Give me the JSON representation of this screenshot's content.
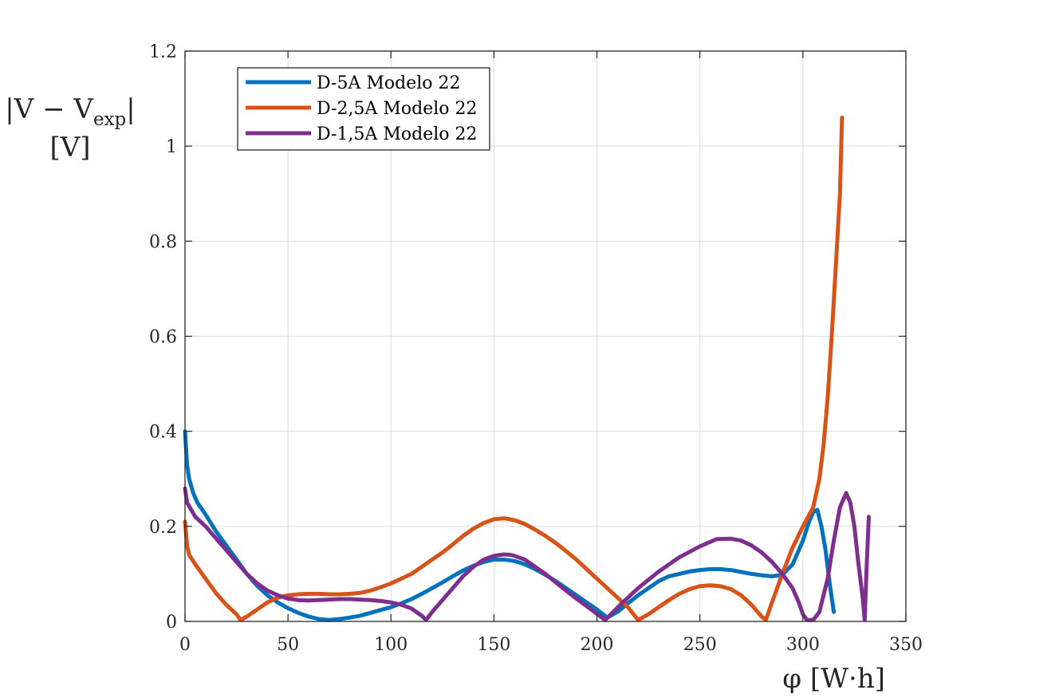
{
  "chart_data": {
    "type": "line",
    "xlabel": "φ [W·h]",
    "ylabel_line1": "|V − V",
    "ylabel_sub": "exp",
    "ylabel_close": "|",
    "ylabel_line2": "[V]",
    "xlim": [
      0,
      350
    ],
    "ylim": [
      0,
      1.2
    ],
    "xticks": [
      "0",
      "50",
      "100",
      "150",
      "200",
      "250",
      "300",
      "350"
    ],
    "yticks": [
      "0",
      "0.2",
      "0.4",
      "0.6",
      "0.8",
      "1",
      "1.2"
    ],
    "grid": true,
    "legend_position": "top-left",
    "series": [
      {
        "name": "D-5A Modelo 22",
        "color": "#0072BD",
        "x": [
          0,
          1,
          2,
          4,
          6,
          10,
          15,
          20,
          25,
          30,
          35,
          40,
          45,
          50,
          55,
          60,
          65,
          70,
          75,
          80,
          85,
          90,
          95,
          100,
          105,
          110,
          115,
          120,
          125,
          130,
          135,
          140,
          145,
          150,
          155,
          160,
          165,
          170,
          175,
          180,
          185,
          190,
          195,
          200,
          205,
          210,
          215,
          220,
          225,
          230,
          235,
          240,
          245,
          250,
          255,
          260,
          265,
          270,
          275,
          280,
          285,
          290,
          295,
          300,
          303,
          305,
          307,
          309,
          311,
          313,
          315
        ],
        "y": [
          0.4,
          0.33,
          0.3,
          0.27,
          0.25,
          0.225,
          0.19,
          0.16,
          0.13,
          0.1,
          0.075,
          0.055,
          0.04,
          0.028,
          0.018,
          0.01,
          0.005,
          0.003,
          0.005,
          0.008,
          0.012,
          0.018,
          0.024,
          0.03,
          0.038,
          0.047,
          0.058,
          0.07,
          0.082,
          0.095,
          0.107,
          0.117,
          0.125,
          0.13,
          0.13,
          0.127,
          0.12,
          0.11,
          0.098,
          0.085,
          0.07,
          0.055,
          0.04,
          0.025,
          0.008,
          0.02,
          0.038,
          0.055,
          0.07,
          0.085,
          0.095,
          0.1,
          0.105,
          0.108,
          0.11,
          0.11,
          0.108,
          0.104,
          0.1,
          0.097,
          0.095,
          0.098,
          0.12,
          0.17,
          0.21,
          0.23,
          0.235,
          0.2,
          0.15,
          0.08,
          0.02
        ]
      },
      {
        "name": "D-2,5A Modelo 22",
        "color": "#D95319",
        "x": [
          0,
          1,
          2,
          5,
          10,
          15,
          20,
          25,
          27,
          30,
          35,
          40,
          45,
          50,
          55,
          60,
          65,
          70,
          75,
          80,
          85,
          90,
          95,
          100,
          105,
          110,
          115,
          120,
          125,
          130,
          135,
          140,
          145,
          150,
          155,
          160,
          165,
          170,
          175,
          180,
          185,
          190,
          195,
          200,
          205,
          210,
          215,
          220,
          225,
          230,
          235,
          240,
          245,
          250,
          255,
          260,
          265,
          270,
          275,
          280,
          282,
          285,
          290,
          295,
          300,
          305,
          308,
          310,
          312,
          314,
          316,
          318,
          319
        ],
        "y": [
          0.21,
          0.16,
          0.14,
          0.12,
          0.09,
          0.06,
          0.035,
          0.015,
          0.003,
          0.01,
          0.025,
          0.04,
          0.05,
          0.055,
          0.057,
          0.058,
          0.058,
          0.057,
          0.057,
          0.058,
          0.06,
          0.065,
          0.072,
          0.08,
          0.09,
          0.1,
          0.115,
          0.13,
          0.145,
          0.162,
          0.18,
          0.195,
          0.207,
          0.215,
          0.217,
          0.213,
          0.205,
          0.193,
          0.18,
          0.165,
          0.148,
          0.13,
          0.11,
          0.09,
          0.07,
          0.05,
          0.03,
          0.003,
          0.015,
          0.03,
          0.045,
          0.058,
          0.068,
          0.074,
          0.076,
          0.074,
          0.068,
          0.055,
          0.035,
          0.01,
          0.003,
          0.04,
          0.1,
          0.155,
          0.2,
          0.24,
          0.3,
          0.37,
          0.47,
          0.6,
          0.75,
          0.9,
          1.06
        ]
      },
      {
        "name": "D-1,5A Modelo 22",
        "color": "#7E2F8E",
        "x": [
          0,
          1,
          3,
          5,
          10,
          15,
          20,
          25,
          30,
          35,
          40,
          45,
          50,
          55,
          60,
          65,
          70,
          75,
          80,
          85,
          90,
          95,
          100,
          105,
          110,
          115,
          117,
          120,
          125,
          130,
          135,
          140,
          145,
          150,
          155,
          158,
          160,
          165,
          170,
          175,
          180,
          185,
          190,
          195,
          200,
          204,
          208,
          212,
          220,
          230,
          240,
          250,
          258,
          265,
          270,
          275,
          280,
          285,
          290,
          295,
          298,
          300,
          302,
          305,
          308,
          312,
          315,
          318,
          321,
          323,
          325,
          327,
          329,
          330,
          331,
          332
        ],
        "y": [
          0.28,
          0.25,
          0.235,
          0.22,
          0.2,
          0.175,
          0.15,
          0.125,
          0.1,
          0.08,
          0.065,
          0.055,
          0.048,
          0.045,
          0.044,
          0.045,
          0.046,
          0.047,
          0.047,
          0.046,
          0.045,
          0.043,
          0.04,
          0.035,
          0.027,
          0.012,
          0.003,
          0.02,
          0.045,
          0.07,
          0.095,
          0.115,
          0.13,
          0.138,
          0.141,
          0.14,
          0.138,
          0.13,
          0.115,
          0.1,
          0.082,
          0.065,
          0.048,
          0.032,
          0.016,
          0.003,
          0.02,
          0.038,
          0.07,
          0.105,
          0.135,
          0.158,
          0.173,
          0.174,
          0.17,
          0.16,
          0.145,
          0.125,
          0.1,
          0.07,
          0.04,
          0.015,
          0.003,
          0.003,
          0.02,
          0.09,
          0.17,
          0.24,
          0.27,
          0.25,
          0.2,
          0.12,
          0.05,
          0.003,
          0.12,
          0.22
        ]
      }
    ]
  }
}
